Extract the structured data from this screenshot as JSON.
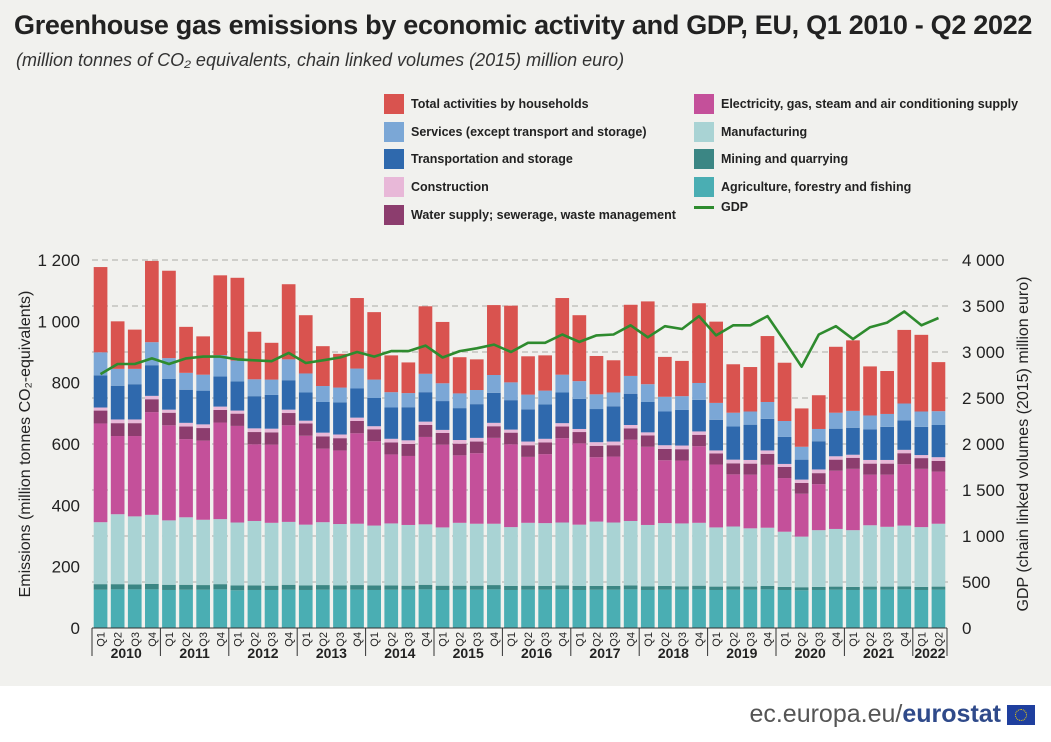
{
  "title": "Greenhouse gas emissions by economic activity and GDP, EU, Q1 2010 - Q2 2022",
  "subtitle": "(million tonnes of CO₂ equivalents, chain linked volumes (2015) million euro)",
  "footer": {
    "site": "ec.europa.eu/",
    "brand": "eurostat"
  },
  "legend": [
    {
      "label": "Total activities by households",
      "color": "#d9534f"
    },
    {
      "label": "Electricity, gas, steam and air conditioning supply",
      "color": "#c4509a"
    },
    {
      "label": "Services (except transport and storage)",
      "color": "#7ba7d6"
    },
    {
      "label": "Manufacturing",
      "color": "#a9d3d4"
    },
    {
      "label": "Transportation and storage",
      "color": "#2f69ad"
    },
    {
      "label": "Mining and quarrying",
      "color": "#3b8684"
    },
    {
      "label": "Construction",
      "color": "#e8b8d8"
    },
    {
      "label": "Agriculture, forestry and fishing",
      "color": "#4aaeb3"
    },
    {
      "label": "Water supply; sewerage, waste management",
      "color": "#8c3d6e"
    },
    {
      "label": "GDP",
      "color": "#2e8b2e",
      "type": "line"
    }
  ],
  "chart_data": {
    "type": "bar",
    "stacked": true,
    "categories": [
      "2010 Q1",
      "2010 Q2",
      "2010 Q3",
      "2010 Q4",
      "2011 Q1",
      "2011 Q2",
      "2011 Q3",
      "2011 Q4",
      "2012 Q1",
      "2012 Q2",
      "2012 Q3",
      "2012 Q4",
      "2013 Q1",
      "2013 Q2",
      "2013 Q3",
      "2013 Q4",
      "2014 Q1",
      "2014 Q2",
      "2014 Q3",
      "2014 Q4",
      "2015 Q1",
      "2015 Q2",
      "2015 Q3",
      "2015 Q4",
      "2016 Q1",
      "2016 Q2",
      "2016 Q3",
      "2016 Q4",
      "2017 Q1",
      "2017 Q2",
      "2017 Q3",
      "2017 Q4",
      "2018 Q1",
      "2018 Q2",
      "2018 Q3",
      "2018 Q4",
      "2019 Q1",
      "2019 Q2",
      "2019 Q3",
      "2019 Q4",
      "2020 Q1",
      "2020 Q2",
      "2020 Q3",
      "2020 Q4",
      "2021 Q1",
      "2021 Q2",
      "2021 Q3",
      "2021 Q4",
      "2022 Q1",
      "2022 Q2"
    ],
    "quarter_labels": [
      "Q1",
      "Q2",
      "Q3",
      "Q4"
    ],
    "years": [
      "2010",
      "2011",
      "2012",
      "2013",
      "2014",
      "2015",
      "2016",
      "2017",
      "2018",
      "2019",
      "2020",
      "2021",
      "2022"
    ],
    "ylabel": "Emissions (million tonnes CO₂-equivalents)",
    "y2label": "GDP (chain linked volumes (2015) million euro)",
    "ylim": [
      0,
      1200
    ],
    "yticks": [
      "0",
      "200",
      "400",
      "600",
      "800",
      "1 000",
      "1 200"
    ],
    "y2lim": [
      0,
      4000
    ],
    "y2ticks": [
      "0",
      "500",
      "1 000",
      "1 500",
      "2 000",
      "2 500",
      "3 000",
      "3 500",
      "4 000"
    ],
    "grid": true,
    "series": [
      {
        "name": "Agriculture, forestry and fishing",
        "color": "#4aaeb3",
        "values": [
          125,
          126,
          126,
          126,
          124,
          125,
          125,
          126,
          123,
          124,
          124,
          125,
          124,
          125,
          125,
          125,
          124,
          125,
          125,
          126,
          124,
          125,
          125,
          126,
          124,
          125,
          125,
          126,
          124,
          125,
          125,
          126,
          124,
          125,
          125,
          126,
          124,
          125,
          125,
          126,
          124,
          123,
          124,
          125,
          124,
          125,
          125,
          126,
          124,
          125
        ]
      },
      {
        "name": "Mining and quarrying",
        "color": "#3b8684",
        "values": [
          18,
          17,
          16,
          18,
          17,
          16,
          15,
          17,
          16,
          15,
          14,
          16,
          15,
          15,
          14,
          15,
          15,
          14,
          13,
          15,
          14,
          13,
          13,
          14,
          13,
          13,
          12,
          13,
          13,
          12,
          12,
          13,
          12,
          12,
          11,
          12,
          11,
          11,
          10,
          11,
          10,
          10,
          10,
          10,
          10,
          10,
          10,
          10,
          10,
          10
        ]
      },
      {
        "name": "Manufacturing",
        "color": "#a9d3d4",
        "values": [
          202,
          228,
          222,
          225,
          210,
          220,
          213,
          212,
          205,
          210,
          205,
          205,
          198,
          205,
          200,
          200,
          195,
          202,
          198,
          197,
          190,
          205,
          202,
          200,
          192,
          205,
          205,
          205,
          200,
          210,
          207,
          210,
          200,
          205,
          205,
          205,
          193,
          195,
          190,
          190,
          180,
          165,
          185,
          188,
          185,
          200,
          195,
          198,
          195,
          205
        ]
      },
      {
        "name": "Electricity, gas, steam and air conditioning supply",
        "color": "#c4509a",
        "values": [
          322,
          255,
          262,
          335,
          310,
          255,
          258,
          315,
          315,
          250,
          255,
          315,
          290,
          240,
          240,
          295,
          275,
          225,
          225,
          285,
          270,
          220,
          230,
          280,
          270,
          215,
          225,
          275,
          265,
          210,
          215,
          265,
          255,
          205,
          205,
          250,
          205,
          170,
          175,
          205,
          175,
          140,
          150,
          190,
          200,
          165,
          170,
          200,
          190,
          170
        ]
      },
      {
        "name": "Water supply; sewerage, waste management",
        "color": "#8c3d6e",
        "values": [
          42,
          42,
          42,
          42,
          41,
          41,
          41,
          41,
          40,
          40,
          40,
          40,
          40,
          40,
          40,
          40,
          39,
          39,
          39,
          39,
          38,
          38,
          38,
          38,
          38,
          38,
          38,
          38,
          37,
          37,
          37,
          37,
          37,
          37,
          37,
          37,
          36,
          36,
          36,
          36,
          36,
          35,
          36,
          36,
          36,
          36,
          36,
          36,
          35,
          35
        ]
      },
      {
        "name": "Construction",
        "color": "#e8b8d8",
        "values": [
          10,
          12,
          12,
          11,
          10,
          12,
          12,
          11,
          10,
          12,
          12,
          11,
          9,
          12,
          12,
          11,
          10,
          12,
          12,
          11,
          10,
          12,
          12,
          11,
          10,
          12,
          12,
          11,
          10,
          12,
          12,
          11,
          10,
          12,
          12,
          11,
          10,
          12,
          12,
          11,
          10,
          11,
          12,
          11,
          10,
          12,
          12,
          11,
          10,
          12
        ]
      },
      {
        "name": "Transportation and storage",
        "color": "#2f69ad",
        "values": [
          105,
          110,
          115,
          100,
          100,
          108,
          110,
          98,
          95,
          105,
          110,
          96,
          92,
          100,
          105,
          95,
          92,
          102,
          108,
          96,
          94,
          104,
          110,
          98,
          96,
          105,
          112,
          100,
          98,
          108,
          115,
          102,
          99,
          110,
          116,
          103,
          100,
          108,
          115,
          103,
          88,
          65,
          92,
          90,
          88,
          100,
          108,
          96,
          92,
          105
        ]
      },
      {
        "name": "Services (except transport and storage)",
        "color": "#7ba7d6",
        "values": [
          75,
          55,
          50,
          75,
          68,
          55,
          52,
          70,
          68,
          55,
          50,
          68,
          62,
          52,
          48,
          65,
          60,
          50,
          46,
          60,
          58,
          48,
          46,
          58,
          58,
          48,
          45,
          58,
          58,
          48,
          45,
          58,
          58,
          48,
          45,
          55,
          55,
          45,
          43,
          55,
          52,
          42,
          40,
          52,
          55,
          45,
          42,
          55,
          50,
          45
        ]
      },
      {
        "name": "Total activities by households",
        "color": "#d9534f",
        "values": [
          278,
          155,
          128,
          265,
          285,
          150,
          125,
          260,
          270,
          155,
          120,
          245,
          190,
          130,
          110,
          230,
          220,
          120,
          100,
          220,
          200,
          118,
          100,
          228,
          250,
          125,
          115,
          250,
          215,
          125,
          105,
          232,
          270,
          130,
          115,
          260,
          265,
          158,
          145,
          215,
          190,
          125,
          110,
          215,
          230,
          160,
          140,
          240,
          250,
          160
        ]
      },
      {
        "name": "GDP",
        "type": "line",
        "axis": "y2",
        "color": "#2e8b2e",
        "values": [
          2760,
          2870,
          2870,
          2930,
          2870,
          2930,
          2950,
          2950,
          2920,
          2910,
          2900,
          2990,
          2880,
          2910,
          2940,
          3000,
          2950,
          3010,
          3010,
          3070,
          2940,
          3010,
          3040,
          3080,
          3000,
          3100,
          3100,
          3190,
          3110,
          3180,
          3190,
          3290,
          3160,
          3280,
          3250,
          3390,
          3180,
          3290,
          3290,
          3390,
          3120,
          2840,
          3190,
          3280,
          3140,
          3270,
          3320,
          3440,
          3290,
          3370
        ]
      }
    ]
  }
}
